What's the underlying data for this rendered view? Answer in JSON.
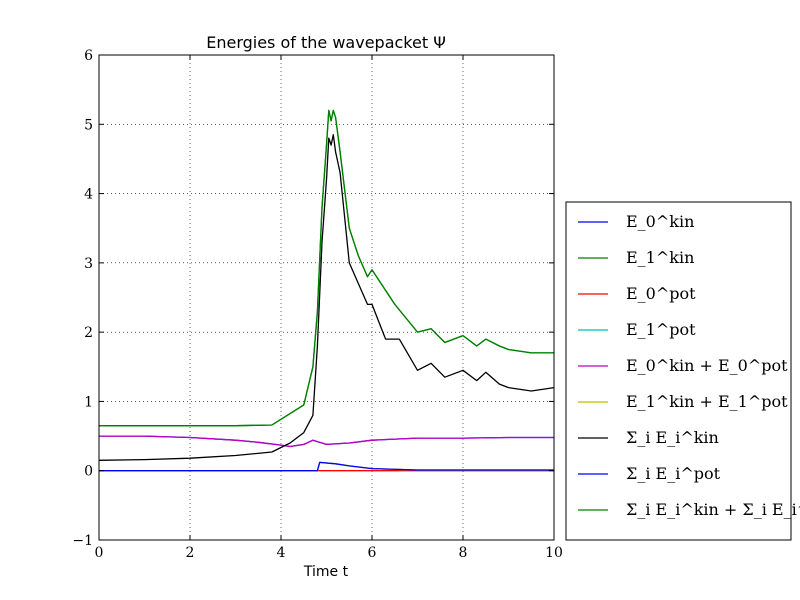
{
  "chart_data": {
    "type": "line",
    "title": "Energies of the wavepacket Ψ",
    "xlabel": "Time t",
    "ylabel": "",
    "xlim": [
      0,
      10
    ],
    "ylim": [
      -1,
      6
    ],
    "xticks": [
      "0",
      "2",
      "4",
      "6",
      "8",
      "10"
    ],
    "yticks": [
      "−1",
      "0",
      "1",
      "2",
      "3",
      "4",
      "5",
      "6"
    ],
    "grid": true,
    "legend_placement": "outside-right",
    "series": [
      {
        "name": "E_0^kin",
        "color": "#0000ff",
        "x": [
          0,
          1,
          2,
          3,
          3.5,
          4,
          4.2,
          4.5,
          4.7,
          4.8,
          5,
          5.5,
          6,
          7,
          8,
          9,
          10
        ],
        "y": [
          0.5,
          0.5,
          0.48,
          0.44,
          0.41,
          0.37,
          0.35,
          0.38,
          0.44,
          0.42,
          0.38,
          0.4,
          0.44,
          0.47,
          0.47,
          0.48,
          0.48
        ]
      },
      {
        "name": "E_1^kin",
        "color": "#008000",
        "x": [
          0,
          1,
          2,
          3,
          3.8,
          4.5,
          4.7,
          4.8,
          4.9,
          5,
          5.05,
          5.1,
          5.15,
          5.2,
          5.3,
          5.5,
          5.7,
          5.9,
          6,
          6.5,
          7,
          7.3,
          7.6,
          8,
          8.3,
          8.5,
          8.8,
          9,
          9.5,
          10
        ],
        "y": [
          0.65,
          0.65,
          0.65,
          0.65,
          0.66,
          0.95,
          1.5,
          2.3,
          3.8,
          4.7,
          5.2,
          5.05,
          5.2,
          5.1,
          4.6,
          3.5,
          3.1,
          2.8,
          2.9,
          2.4,
          2.0,
          2.05,
          1.85,
          1.95,
          1.8,
          1.9,
          1.8,
          1.75,
          1.7,
          1.7
        ]
      },
      {
        "name": "E_0^pot",
        "color": "#ff0000",
        "x": [
          0,
          4,
          4.8,
          10
        ],
        "y": [
          0,
          0,
          0,
          0
        ]
      },
      {
        "name": "E_1^pot",
        "color": "#00bfbf",
        "x": [
          0,
          4.8,
          4.85,
          5.2,
          5.5,
          6,
          7,
          10
        ],
        "y": [
          0,
          0,
          0.12,
          0.1,
          0.07,
          0.03,
          0.01,
          0.01
        ]
      },
      {
        "name": "E_0^kin + E_0^pot",
        "color": "#bf00bf",
        "x": [
          0,
          1,
          2,
          3,
          3.5,
          4,
          4.2,
          4.5,
          4.7,
          4.8,
          5,
          5.5,
          6,
          7,
          8,
          9,
          10
        ],
        "y": [
          0.5,
          0.5,
          0.48,
          0.44,
          0.41,
          0.37,
          0.35,
          0.38,
          0.44,
          0.42,
          0.38,
          0.4,
          0.44,
          0.47,
          0.47,
          0.48,
          0.48
        ]
      },
      {
        "name": "E_1^kin + E_1^pot",
        "color": "#bfbf00",
        "x": [
          0,
          4.8,
          4.85,
          5.2,
          5.5,
          6,
          7,
          10
        ],
        "y": [
          0,
          0,
          0.12,
          0.1,
          0.07,
          0.03,
          0.01,
          0.01
        ]
      },
      {
        "name": "Σ_i E_i^kin",
        "color": "#000000",
        "x": [
          0,
          1,
          2,
          3,
          3.8,
          4.2,
          4.5,
          4.7,
          4.8,
          4.9,
          5,
          5.05,
          5.1,
          5.15,
          5.2,
          5.3,
          5.5,
          5.7,
          5.9,
          6,
          6.3,
          6.6,
          7,
          7.3,
          7.6,
          8,
          8.3,
          8.5,
          8.8,
          9,
          9.5,
          10
        ],
        "y": [
          0.15,
          0.16,
          0.18,
          0.22,
          0.27,
          0.4,
          0.55,
          0.8,
          1.8,
          3.3,
          4.2,
          4.8,
          4.7,
          4.85,
          4.6,
          4.3,
          3.0,
          2.7,
          2.4,
          2.4,
          1.9,
          1.9,
          1.45,
          1.55,
          1.35,
          1.45,
          1.3,
          1.42,
          1.25,
          1.2,
          1.15,
          1.2
        ]
      },
      {
        "name": "Σ_i E_i^pot",
        "color": "#0000ff",
        "x": [
          0,
          4.8,
          4.85,
          5.2,
          5.5,
          6,
          7,
          10
        ],
        "y": [
          0,
          0,
          0.12,
          0.1,
          0.07,
          0.03,
          0.01,
          0.01
        ]
      },
      {
        "name": "Σ_i E_i^kin + Σ_i E_i^pot",
        "color": "#008000",
        "x": [
          0,
          1,
          2,
          3,
          3.8,
          4.5,
          4.7,
          4.8,
          4.9,
          5,
          5.05,
          5.1,
          5.15,
          5.2,
          5.3,
          5.5,
          5.7,
          5.9,
          6,
          6.5,
          7,
          7.3,
          7.6,
          8,
          8.3,
          8.5,
          8.8,
          9,
          9.5,
          10
        ],
        "y": [
          0.65,
          0.65,
          0.65,
          0.65,
          0.66,
          0.95,
          1.5,
          2.3,
          3.8,
          4.7,
          5.2,
          5.05,
          5.2,
          5.1,
          4.6,
          3.5,
          3.1,
          2.8,
          2.9,
          2.4,
          2.0,
          2.05,
          1.85,
          1.95,
          1.8,
          1.9,
          1.8,
          1.75,
          1.7,
          1.7
        ]
      }
    ]
  }
}
